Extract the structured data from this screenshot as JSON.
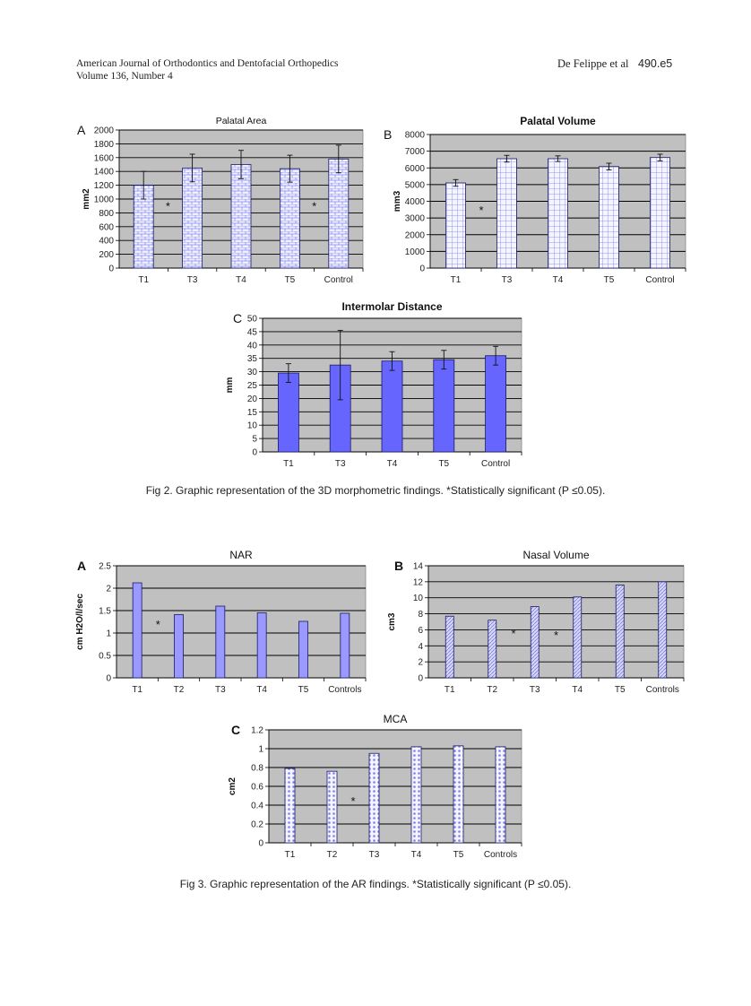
{
  "header": {
    "journal": "American Journal of Orthodontics and Dentofacial Orthopedics",
    "volume": "Volume 136, Number 4",
    "authors": "De Felippe et al",
    "page": "490.e5"
  },
  "fig2_caption": "Fig 2. Graphic representation of the 3D morphometric findings. *Statistically significant (P ≤0.05).",
  "fig3_caption": "Fig 3. Graphic representation of the AR findings. *Statistically significant (P ≤0.05).",
  "colors": {
    "bar_fill": "#9999ff",
    "bar_edge": "#1a1a66",
    "plot_bg": "#c0c0c0"
  },
  "chart_data": [
    {
      "panel": "A",
      "type": "bar",
      "title": "Palatal Area",
      "xlabel": "",
      "ylabel": "mm2",
      "categories": [
        "T1",
        "T3",
        "T4",
        "T5",
        "Control"
      ],
      "values": [
        1200,
        1450,
        1500,
        1440,
        1580
      ],
      "error": [
        200,
        200,
        205,
        195,
        200
      ],
      "ylim": [
        0,
        2000
      ],
      "yticks": [
        0,
        200,
        400,
        600,
        800,
        1000,
        1200,
        1400,
        1600,
        1800,
        2000
      ],
      "pattern": "brick",
      "grid": true,
      "annotations": [
        {
          "text": "*",
          "between": [
            0,
            1
          ],
          "y": 900
        },
        {
          "text": "*",
          "between": [
            3,
            4
          ],
          "y": 900
        }
      ]
    },
    {
      "panel": "B",
      "type": "bar",
      "title": "Palatal Volume",
      "xlabel": "",
      "ylabel": "mm3",
      "categories": [
        "T1",
        "T3",
        "T4",
        "T5",
        "Control"
      ],
      "values": [
        5100,
        6550,
        6550,
        6080,
        6620
      ],
      "error": [
        200,
        200,
        170,
        200,
        200
      ],
      "ylim": [
        0,
        8000
      ],
      "yticks": [
        0,
        1000,
        2000,
        3000,
        4000,
        5000,
        6000,
        7000,
        8000
      ],
      "pattern": "grid",
      "grid": true,
      "annotations": [
        {
          "text": "*",
          "between": [
            0,
            1
          ],
          "y": 3500
        }
      ]
    },
    {
      "panel": "C",
      "type": "bar",
      "title": "Intermolar Distance",
      "xlabel": "",
      "ylabel": "mm",
      "categories": [
        "T1",
        "T3",
        "T4",
        "T5",
        "Control"
      ],
      "values": [
        29.5,
        32.5,
        34,
        34.5,
        36
      ],
      "error": [
        3.5,
        13,
        3.5,
        3.5,
        3.5
      ],
      "ylim": [
        0,
        50
      ],
      "yticks": [
        0,
        5,
        10,
        15,
        20,
        25,
        30,
        35,
        40,
        45,
        50
      ],
      "pattern": "solid",
      "grid": true,
      "annotations": []
    },
    {
      "panel": "A",
      "type": "bar",
      "title": "NAR",
      "xlabel": "",
      "ylabel": "cm H2O/l/sec",
      "categories": [
        "T1",
        "T2",
        "T3",
        "T4",
        "T5",
        "Controls"
      ],
      "values": [
        2.12,
        1.41,
        1.6,
        1.45,
        1.26,
        1.44
      ],
      "ylim": [
        0,
        2.5
      ],
      "yticks": [
        0,
        0.5,
        1,
        1.5,
        2,
        2.5
      ],
      "pattern": "solid",
      "grid": true,
      "annotations": [
        {
          "text": "*",
          "between": [
            0,
            1
          ],
          "y": 1.2
        }
      ]
    },
    {
      "panel": "B",
      "type": "bar",
      "title": "Nasal Volume",
      "xlabel": "",
      "ylabel": "cm3",
      "categories": [
        "T1",
        "T2",
        "T3",
        "T4",
        "T5",
        "Controls"
      ],
      "values": [
        7.7,
        7.2,
        8.9,
        10.1,
        11.6,
        12.0
      ],
      "ylim": [
        0,
        14
      ],
      "yticks": [
        0,
        2,
        4,
        6,
        8,
        10,
        12,
        14
      ],
      "pattern": "hatch",
      "grid": true,
      "annotations": [
        {
          "text": "*",
          "between": [
            1,
            2
          ],
          "y": 5.6
        },
        {
          "text": "*",
          "between": [
            2,
            3
          ],
          "y": 5.4
        }
      ]
    },
    {
      "panel": "C",
      "type": "bar",
      "title": "MCA",
      "xlabel": "",
      "ylabel": "cm2",
      "categories": [
        "T1",
        "T2",
        "T3",
        "T4",
        "T5",
        "Controls"
      ],
      "values": [
        0.79,
        0.76,
        0.95,
        1.02,
        1.03,
        1.02
      ],
      "ylim": [
        0,
        1.2
      ],
      "yticks": [
        0,
        0.2,
        0.4,
        0.6,
        0.8,
        1,
        1.2
      ],
      "pattern": "dots",
      "grid": true,
      "annotations": [
        {
          "text": "*",
          "between": [
            1,
            2
          ],
          "y": 0.45
        }
      ]
    }
  ]
}
